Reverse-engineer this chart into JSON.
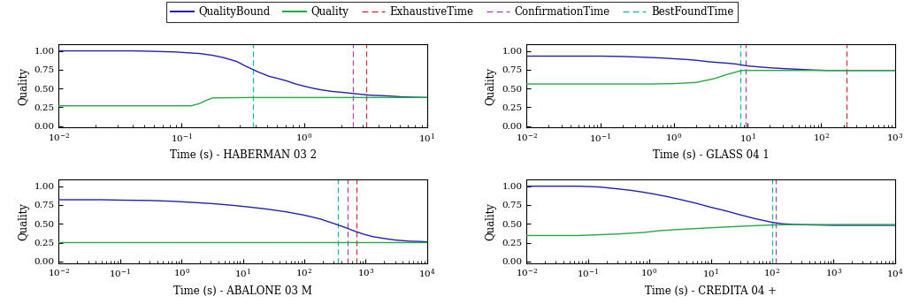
{
  "subplots": [
    {
      "title": "Time (s) - HABERMAN 03 2",
      "xlim": [
        0.01,
        10
      ],
      "ylim": [
        -0.02,
        1.09
      ],
      "vlines": {
        "BestFoundTime": 0.38,
        "ConfirmationTime": 2.5,
        "ExhaustiveTime": 3.2
      },
      "quality_bound": {
        "x": [
          0.01,
          0.015,
          0.02,
          0.03,
          0.04,
          0.055,
          0.07,
          0.09,
          0.11,
          0.14,
          0.18,
          0.22,
          0.28,
          0.34,
          0.42,
          0.52,
          0.62,
          0.72,
          0.85,
          1.0,
          1.2,
          1.4,
          1.7,
          2.0,
          2.3,
          2.6,
          3.0,
          3.5,
          4.2,
          5.0,
          6.0,
          7.5,
          10.0
        ],
        "y": [
          1.0,
          1.0,
          1.0,
          1.0,
          1.0,
          0.995,
          0.99,
          0.985,
          0.975,
          0.965,
          0.94,
          0.91,
          0.86,
          0.79,
          0.72,
          0.66,
          0.63,
          0.6,
          0.56,
          0.53,
          0.5,
          0.48,
          0.46,
          0.45,
          0.44,
          0.43,
          0.42,
          0.41,
          0.405,
          0.4,
          0.39,
          0.385,
          0.38
        ]
      },
      "quality": {
        "x": [
          0.01,
          0.05,
          0.1,
          0.12,
          0.14,
          0.16,
          0.18,
          0.38,
          1.0,
          2.5,
          3.0,
          4.0,
          10.0
        ],
        "y": [
          0.27,
          0.27,
          0.27,
          0.27,
          0.3,
          0.345,
          0.375,
          0.38,
          0.38,
          0.38,
          0.38,
          0.38,
          0.38
        ]
      }
    },
    {
      "title": "Time (s) - GLASS 04 1",
      "xlim": [
        0.01,
        1000
      ],
      "ylim": [
        -0.02,
        1.09
      ],
      "vlines": {
        "BestFoundTime": 8.0,
        "ConfirmationTime": 9.5,
        "ExhaustiveTime": 220.0
      },
      "quality_bound": {
        "x": [
          0.01,
          0.02,
          0.05,
          0.1,
          0.2,
          0.4,
          0.7,
          1.0,
          1.5,
          2.0,
          3.0,
          4.0,
          5.5,
          7.0,
          8.5,
          10.0,
          15.0,
          20.0,
          30.0,
          50.0,
          80.0,
          120.0,
          200.0,
          300.0,
          500.0,
          800.0,
          1000.0
        ],
        "y": [
          0.93,
          0.93,
          0.93,
          0.93,
          0.925,
          0.915,
          0.905,
          0.895,
          0.885,
          0.875,
          0.855,
          0.845,
          0.835,
          0.825,
          0.81,
          0.8,
          0.785,
          0.775,
          0.765,
          0.755,
          0.745,
          0.74,
          0.74,
          0.74,
          0.74,
          0.74,
          0.74
        ]
      },
      "quality": {
        "x": [
          0.01,
          0.05,
          0.1,
          0.5,
          1.0,
          2.0,
          3.5,
          5.0,
          7.0,
          8.5,
          10.0,
          50.0,
          220.0,
          1000.0
        ],
        "y": [
          0.56,
          0.56,
          0.56,
          0.56,
          0.565,
          0.58,
          0.63,
          0.68,
          0.72,
          0.74,
          0.74,
          0.74,
          0.74,
          0.74
        ]
      }
    },
    {
      "title": "Time (s) - ABALONE 03 M",
      "xlim": [
        0.01,
        10000
      ],
      "ylim": [
        -0.02,
        1.09
      ],
      "vlines": {
        "BestFoundTime": 350.0,
        "ConfirmationTime": 500.0,
        "ExhaustiveTime": 700.0
      },
      "quality_bound": {
        "x": [
          0.01,
          0.05,
          0.1,
          0.3,
          0.7,
          1.5,
          3.0,
          6.0,
          12.0,
          25.0,
          50.0,
          100.0,
          180.0,
          300.0,
          450.0,
          650.0,
          900.0,
          1300.0,
          2000.0,
          3000.0,
          5000.0,
          8000.0,
          10000.0
        ],
        "y": [
          0.82,
          0.82,
          0.815,
          0.81,
          0.8,
          0.785,
          0.77,
          0.75,
          0.725,
          0.695,
          0.66,
          0.615,
          0.565,
          0.505,
          0.455,
          0.405,
          0.365,
          0.33,
          0.305,
          0.285,
          0.27,
          0.265,
          0.26
        ]
      },
      "quality": {
        "x": [
          0.01,
          0.1,
          0.5,
          2.0,
          10.0,
          50.0,
          350.0,
          500.0,
          700.0,
          10000.0
        ],
        "y": [
          0.255,
          0.255,
          0.255,
          0.255,
          0.255,
          0.255,
          0.255,
          0.255,
          0.255,
          0.255
        ]
      }
    },
    {
      "title": "Time (s) - CREDITA 04 +",
      "xlim": [
        0.01,
        10000
      ],
      "ylim": [
        -0.02,
        1.09
      ],
      "vlines": {
        "BestFoundTime": 100.0,
        "ConfirmationTime": 115.0,
        "ExhaustiveTime": null
      },
      "quality_bound": {
        "x": [
          0.01,
          0.02,
          0.03,
          0.05,
          0.07,
          0.1,
          0.15,
          0.2,
          0.3,
          0.5,
          0.8,
          1.2,
          2.0,
          3.5,
          6.0,
          10.0,
          18.0,
          30.0,
          55.0,
          100.0,
          150.0,
          250.0,
          500.0,
          1000.0,
          3000.0,
          10000.0
        ],
        "y": [
          1.0,
          1.0,
          1.0,
          1.0,
          1.0,
          0.995,
          0.99,
          0.98,
          0.965,
          0.945,
          0.92,
          0.895,
          0.86,
          0.815,
          0.77,
          0.72,
          0.67,
          0.62,
          0.565,
          0.52,
          0.5,
          0.49,
          0.485,
          0.48,
          0.48,
          0.48
        ]
      },
      "quality": {
        "x": [
          0.01,
          0.05,
          0.07,
          0.1,
          0.15,
          0.3,
          0.8,
          1.5,
          5.0,
          15.0,
          50.0,
          100.0,
          200.0,
          1000.0,
          10000.0
        ],
        "y": [
          0.345,
          0.345,
          0.345,
          0.35,
          0.355,
          0.365,
          0.385,
          0.41,
          0.435,
          0.455,
          0.475,
          0.485,
          0.49,
          0.49,
          0.49
        ]
      }
    }
  ],
  "colors": {
    "quality_bound": "#2222aa",
    "quality": "#22aa44",
    "exhaustive_time": "#cc3333",
    "confirmation_time": "#aa44bb",
    "best_found_time": "#11bbaa"
  },
  "yticks": [
    0.0,
    0.25,
    0.5,
    0.75,
    1.0
  ],
  "legend_labels": [
    "QualityBound",
    "Quality",
    "ExhaustiveTime",
    "ConfirmationTime",
    "BestFoundTime"
  ]
}
